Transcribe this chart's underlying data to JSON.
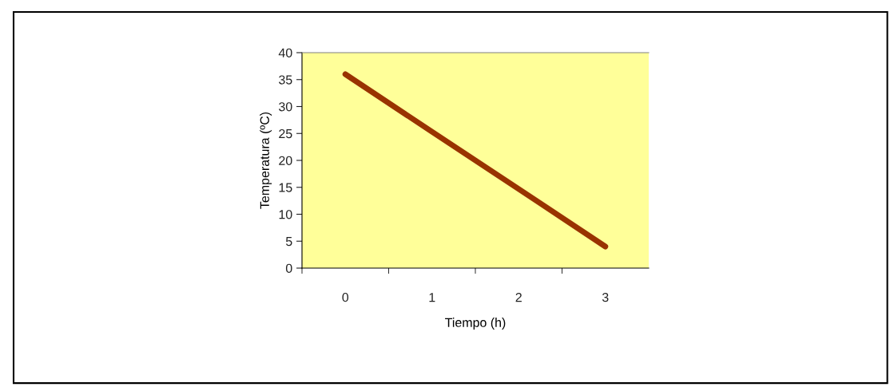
{
  "chart_data": {
    "type": "line",
    "xlabel": "Tiempo (h)",
    "ylabel": "Temperatura (ºC)",
    "categories": [
      "0",
      "1",
      "2",
      "3"
    ],
    "series": [
      {
        "color": "#993300",
        "values": [
          36,
          25.3,
          14.7,
          4
        ]
      }
    ],
    "ylim": [
      0,
      40
    ],
    "yticks": [
      0,
      5,
      10,
      15,
      20,
      25,
      30,
      35,
      40
    ],
    "grid": false,
    "legend": false,
    "marker": "none",
    "line_style": "solid"
  }
}
